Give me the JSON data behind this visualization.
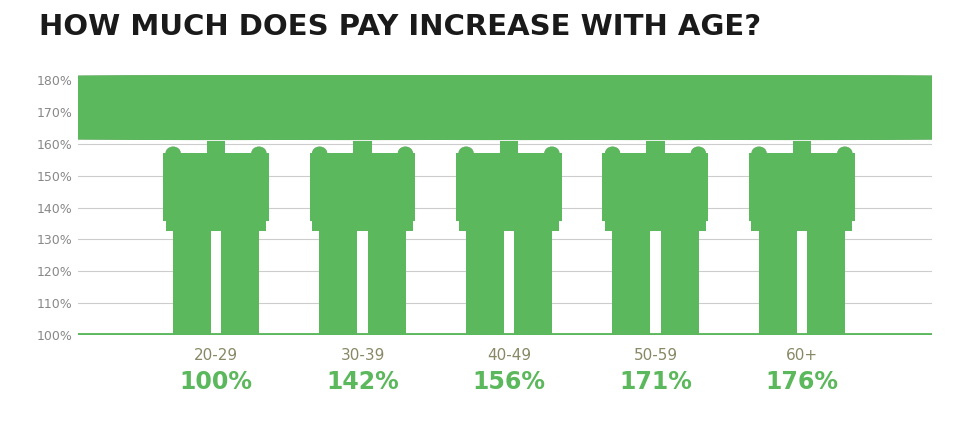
{
  "title": "HOW MUCH DOES PAY INCREASE WITH AGE?",
  "title_fontsize": 21,
  "title_color": "#1a1a1a",
  "categories": [
    "20-29",
    "30-39",
    "40-49",
    "50-59",
    "60+"
  ],
  "values": [
    100,
    142,
    156,
    171,
    176
  ],
  "value_labels": [
    "100%",
    "142%",
    "156%",
    "171%",
    "176%"
  ],
  "ymin": 100,
  "ymax": 180,
  "yticks": [
    100,
    110,
    120,
    130,
    140,
    150,
    160,
    170,
    180
  ],
  "ytick_labels": [
    "100%",
    "110%",
    "120%",
    "130%",
    "140%",
    "150%",
    "160%",
    "170%",
    "180%"
  ],
  "green_color": "#5cb85c",
  "gray_color": "#aaaaaa",
  "background_color": "#ffffff",
  "grid_color": "#cccccc",
  "baseline_color": "#5cb85c",
  "label_color": "#888866",
  "value_label_color": "#5cb85c",
  "figure_width": 9.71,
  "figure_height": 4.47,
  "x_positions": [
    1.7,
    3.5,
    5.3,
    7.1,
    8.9
  ]
}
